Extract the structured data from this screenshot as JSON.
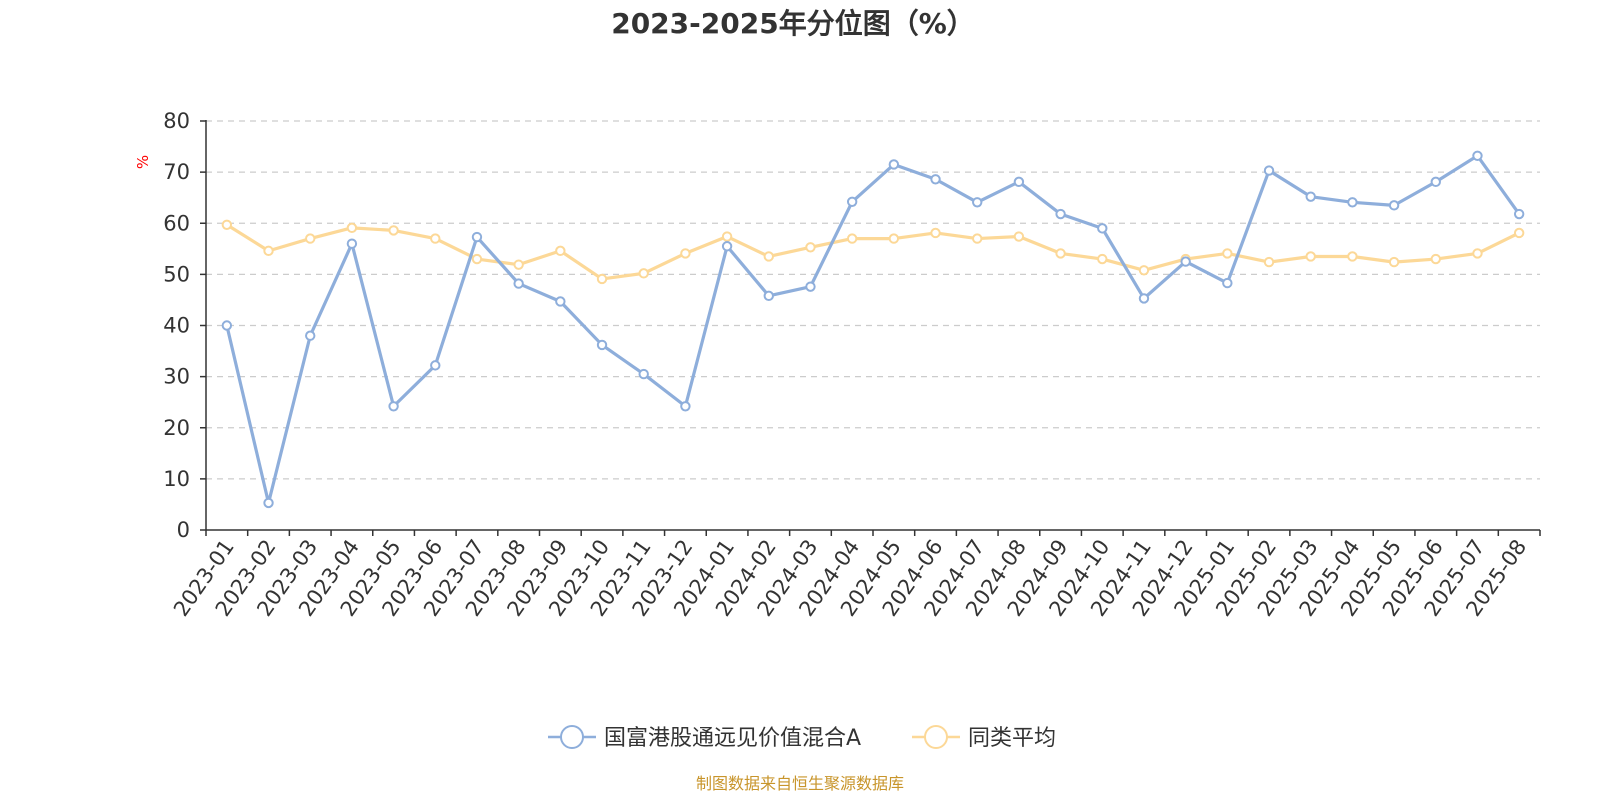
{
  "chart_data": {
    "type": "line",
    "title": "2023-2025年分位图（%）",
    "ylabel": "%",
    "ylim": [
      0,
      80
    ],
    "yticks": [
      "0",
      "10",
      "20",
      "30",
      "40",
      "50",
      "60",
      "70",
      "80"
    ],
    "grid": true,
    "legend_position": "bottom",
    "categories": [
      "2023-01",
      "2023-02",
      "2023-03",
      "2023-04",
      "2023-05",
      "2023-06",
      "2023-07",
      "2023-08",
      "2023-09",
      "2023-10",
      "2023-11",
      "2023-12",
      "2024-01",
      "2024-02",
      "2024-03",
      "2024-04",
      "2024-05",
      "2024-06",
      "2024-07",
      "2024-08",
      "2024-09",
      "2024-10",
      "2024-11",
      "2024-12",
      "2025-01",
      "2025-02",
      "2025-03",
      "2025-04",
      "2025-05",
      "2025-06",
      "2025-07",
      "2025-08"
    ],
    "series": [
      {
        "name": "国富港股通远见价值混合A",
        "color": "#8eaedb",
        "values": [
          40,
          5.3,
          38,
          56,
          24.2,
          32.2,
          57.3,
          48.2,
          44.7,
          36.2,
          30.5,
          24.2,
          55.5,
          45.8,
          47.6,
          64.2,
          71.5,
          68.6,
          64.1,
          68.1,
          61.8,
          59,
          45.3,
          52.5,
          48.3,
          70.3,
          65.2,
          64.1,
          63.5,
          68.1,
          73.2,
          61.8
        ]
      },
      {
        "name": "同类平均",
        "color": "#fcd897",
        "values": [
          59.7,
          54.6,
          57,
          59.1,
          58.6,
          57,
          53,
          51.9,
          54.6,
          49.1,
          50.2,
          54.1,
          57.4,
          53.5,
          55.3,
          57,
          57,
          58.1,
          57,
          57.4,
          54.1,
          53,
          50.8,
          53,
          54.1,
          52.4,
          53.5,
          53.5,
          52.4,
          53,
          54.1,
          58.1
        ]
      }
    ]
  },
  "source_text": "制图数据来自恒生聚源数据库",
  "source_color": "#c8952b"
}
